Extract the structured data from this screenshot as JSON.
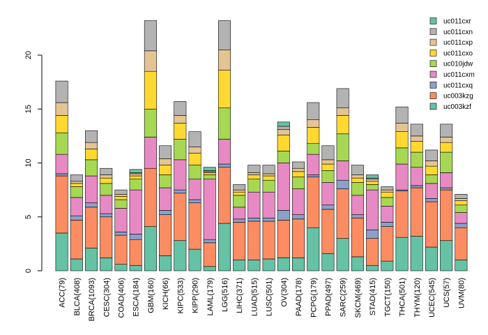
{
  "chart_data": {
    "type": "bar",
    "stacked": true,
    "title": "",
    "xlabel": "",
    "ylabel": "",
    "ylim": [
      0,
      25
    ],
    "yticks": [
      0,
      5,
      10,
      15,
      20
    ],
    "legend_position": "top-right",
    "categories": [
      "ACC(79)",
      "BLCA(408)",
      "BRCA(1093)",
      "CESC(304)",
      "COAD(406)",
      "ESCA(184)",
      "GBM(160)",
      "KICH(66)",
      "KIPC(533)",
      "KIPP(290)",
      "LAML(179)",
      "LGG(516)",
      "LIHC(371)",
      "LUAD(515)",
      "LUSC(501)",
      "OV(304)",
      "PAAD(178)",
      "PCPG(179)",
      "PPAD(497)",
      "SARC(259)",
      "SKCM(469)",
      "STAD(415)",
      "TGCT(150)",
      "THCA(501)",
      "THYM(120)",
      "UCEC(545)",
      "UCS(57)",
      "UVM(80)"
    ],
    "series": [
      {
        "name": "uc003kzf",
        "color": "#66C2A5",
        "values": [
          3.5,
          1.1,
          2.1,
          1.2,
          0.6,
          0.5,
          4.1,
          1.4,
          2.8,
          2.0,
          0.4,
          4.4,
          1.0,
          1.0,
          1.1,
          1.2,
          1.2,
          4.0,
          1.6,
          3.0,
          1.3,
          0.5,
          0.9,
          3.1,
          3.2,
          2.2,
          2.8,
          1.0
        ]
      },
      {
        "name": "uc003kzg",
        "color": "#FC8D62",
        "values": [
          5.3,
          3.6,
          3.8,
          3.8,
          2.7,
          2.4,
          5.4,
          3.8,
          4.4,
          4.3,
          2.2,
          5.2,
          3.5,
          3.6,
          3.5,
          3.5,
          3.6,
          4.7,
          4.1,
          4.6,
          3.6,
          2.5,
          3.2,
          4.3,
          4.5,
          4.2,
          4.7,
          3.0
        ]
      },
      {
        "name": "uc011cxq",
        "color": "#8DA0CB",
        "values": [
          0.2,
          0.4,
          0.4,
          0.3,
          0.3,
          0.5,
          0.0,
          0.4,
          0.3,
          0.3,
          0.3,
          0.3,
          0.3,
          0.3,
          0.3,
          0.9,
          0.4,
          0.2,
          0.4,
          0.8,
          0.3,
          0.8,
          0.4,
          0.1,
          0.2,
          0.3,
          0.2,
          0.4
        ]
      },
      {
        "name": "uc011cxm",
        "color": "#E78AC3",
        "values": [
          1.8,
          1.7,
          2.5,
          1.7,
          2.2,
          4.1,
          2.9,
          2.1,
          2.8,
          1.9,
          5.6,
          2.3,
          1.1,
          2.4,
          2.4,
          4.4,
          2.4,
          1.9,
          2.1,
          1.8,
          1.8,
          3.7,
          1.5,
          2.4,
          1.7,
          1.4,
          1.4,
          1.0
        ]
      },
      {
        "name": "uc010jdw",
        "color": "#A6D854",
        "values": [
          2.0,
          1.0,
          1.5,
          1.1,
          0.8,
          1.0,
          2.6,
          1.2,
          1.9,
          1.3,
          0.4,
          2.9,
          1.1,
          1.2,
          1.1,
          1.1,
          1.1,
          1.0,
          1.1,
          2.5,
          1.2,
          0.5,
          0.8,
          1.5,
          1.4,
          0.8,
          1.9,
          0.7
        ]
      },
      {
        "name": "uc011cxo",
        "color": "#FFD92F",
        "values": [
          1.6,
          0.3,
          1.0,
          0.5,
          0.3,
          0.3,
          3.5,
          0.9,
          1.5,
          1.1,
          0.2,
          3.5,
          0.3,
          0.4,
          0.4,
          1.5,
          0.5,
          1.5,
          0.6,
          1.7,
          0.4,
          0.3,
          0.5,
          1.5,
          1.0,
          0.8,
          0.9,
          0.4
        ]
      },
      {
        "name": "uc011cxp",
        "color": "#E5C494",
        "values": [
          1.2,
          0.2,
          0.6,
          0.3,
          0.2,
          0.2,
          1.9,
          0.6,
          0.7,
          0.6,
          0.1,
          1.9,
          0.2,
          0.2,
          0.2,
          0.5,
          0.3,
          0.7,
          0.4,
          0.7,
          0.3,
          0.2,
          0.2,
          0.8,
          0.5,
          0.5,
          0.5,
          0.2
        ]
      },
      {
        "name": "uc011cxn",
        "color": "#B3B3B3",
        "values": [
          2.0,
          0.6,
          1.1,
          0.6,
          0.4,
          0.1,
          2.8,
          1.2,
          1.3,
          1.4,
          0.1,
          2.7,
          0.5,
          0.7,
          0.8,
          0.3,
          0.6,
          1.6,
          1.3,
          1.8,
          0.9,
          0.1,
          0.3,
          1.5,
          1.1,
          1.0,
          1.2,
          0.4
        ]
      },
      {
        "name": "uc011cxr",
        "color": "#66C2A5",
        "values": [
          0.0,
          0.0,
          0.0,
          0.0,
          0.0,
          0.3,
          0.0,
          0.0,
          0.0,
          0.0,
          0.3,
          0.0,
          0.0,
          0.0,
          0.0,
          0.4,
          0.0,
          0.0,
          0.0,
          0.0,
          0.0,
          0.3,
          0.0,
          0.0,
          0.0,
          0.0,
          0.0,
          0.0
        ]
      }
    ],
    "legend_order": [
      "uc011cxr",
      "uc011cxn",
      "uc011cxp",
      "uc011cxo",
      "uc010jdw",
      "uc011cxm",
      "uc011cxq",
      "uc003kzg",
      "uc003kzf"
    ]
  }
}
